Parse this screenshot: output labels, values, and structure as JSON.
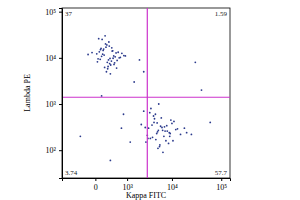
{
  "chart_data": {
    "type": "scatter",
    "x_label": "Kappa FITC",
    "y_label": "Lambda PE",
    "color": "#2b3a8c",
    "log": "y",
    "xlim": [
      -1100,
      150000
    ],
    "ylim": [
      25,
      120000
    ],
    "xticks": [
      0,
      {
        "value": 1000,
        "label": "10³"
      },
      {
        "value": 10000,
        "label": "10⁴"
      },
      {
        "value": 100000,
        "label": "10⁵"
      }
    ],
    "yticks": [
      {
        "value": 100,
        "label": "10²"
      },
      {
        "value": 1000,
        "label": "10³"
      },
      {
        "value": 10000,
        "label": "10⁴"
      },
      {
        "value": 100000,
        "label": "10⁵"
      }
    ],
    "quadrant_lines": {
      "x": 3000,
      "y": 1400
    },
    "quadrants": {
      "upper_left": 37,
      "upper_right": 1.59,
      "lower_left": 3.74,
      "lower_right": 57.7
    },
    "x": [
      120,
      250,
      80,
      400,
      310,
      -50,
      180,
      600,
      220,
      90,
      350,
      500,
      150,
      40,
      270,
      720,
      200,
      330,
      110,
      450,
      60,
      280,
      900,
      170,
      240,
      380,
      130,
      20,
      520,
      300,
      190,
      650,
      -120,
      260,
      410,
      140,
      75,
      560,
      230,
      340,
      100,
      480,
      210,
      30,
      370,
      160,
      820,
      290,
      50,
      430,
      5000,
      3500,
      7000,
      4200,
      9000,
      2800,
      6000,
      12000,
      3800,
      5500,
      8000,
      4500,
      15000,
      3200,
      6500,
      10000,
      4800,
      2500,
      7500,
      5200,
      11000,
      3900,
      6200,
      20000,
      4100,
      8500,
      5800,
      3000,
      9500,
      4600,
      13000,
      3600,
      7200,
      5100,
      2200,
      6800,
      18000,
      4300,
      8800,
      3400,
      5600,
      7800,
      25000,
      4900,
      3100,
      6400,
      10500,
      5300,
      2700,
      9200,
      1500,
      800,
      2500,
      40000,
      -300,
      1200,
      60000,
      300,
      2000,
      100,
      700,
      30000
    ],
    "values": [
      12000,
      9000,
      15000,
      11000,
      7000,
      13000,
      20000,
      10000,
      8000,
      16000,
      14000,
      6000,
      11500,
      9500,
      18000,
      12500,
      5000,
      8500,
      25000,
      10500,
      13500,
      7500,
      11000,
      30000,
      6500,
      9800,
      14500,
      12200,
      8800,
      4500,
      17000,
      10200,
      11800,
      22000,
      7200,
      15500,
      9300,
      13200,
      5800,
      16500,
      10800,
      12800,
      19000,
      8200,
      14200,
      6200,
      11200,
      9700,
      26000,
      7800,
      250,
      180,
      320,
      400,
      200,
      150,
      500,
      280,
      350,
      120,
      260,
      600,
      220,
      300,
      90,
      380,
      230,
      700,
      160,
      270,
      420,
      190,
      310,
      240,
      550,
      140,
      330,
      210,
      450,
      170,
      290,
      800,
      260,
      110,
      360,
      200,
      300,
      480,
      240,
      650,
      130,
      340,
      220,
      390,
      180,
      270,
      160,
      1000,
      310,
      230,
      3000,
      600,
      5000,
      2000,
      200,
      150,
      400,
      60,
      9000,
      1500,
      300,
      8000
    ]
  }
}
